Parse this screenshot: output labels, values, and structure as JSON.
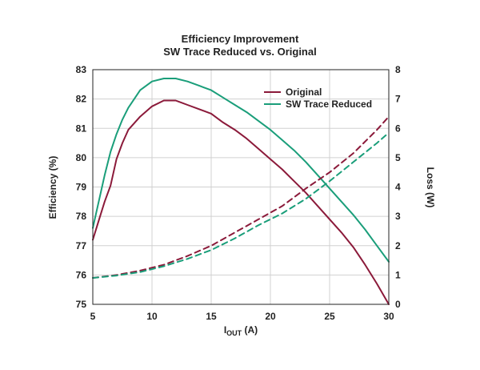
{
  "chart_data": {
    "type": "line",
    "title": "Efficiency Improvement",
    "subtitle": "SW Trace Reduced vs. Original",
    "xlabel_main": "I",
    "xlabel_sub": "OUT",
    "xlabel_unit": " (A)",
    "ylabel_left": "Efficiency (%)",
    "ylabel_right": "Loss (W)",
    "xlim": [
      5,
      30
    ],
    "ylim_left": [
      75,
      83
    ],
    "ylim_right": [
      0,
      8
    ],
    "x_ticks": [
      5,
      10,
      15,
      20,
      25,
      30
    ],
    "y_ticks_left": [
      75,
      76,
      77,
      78,
      79,
      80,
      81,
      82,
      83
    ],
    "y_ticks_right": [
      0,
      1,
      2,
      3,
      4,
      5,
      6,
      7,
      8
    ],
    "grid": true,
    "legend_position": "top-right",
    "colors": {
      "original": "#8b1a3a",
      "sw_trace_reduced": "#1a9e7a"
    },
    "series": [
      {
        "name": "Original",
        "metric": "efficiency",
        "axis": "left",
        "color": "#8b1a3a",
        "style": "solid",
        "x": [
          5,
          5.5,
          6,
          6.5,
          7,
          7.5,
          8,
          9,
          10,
          11,
          12,
          13,
          14,
          15,
          16,
          17,
          18,
          19,
          20,
          21,
          22,
          23,
          24,
          25,
          26,
          27,
          28,
          29,
          30
        ],
        "values": [
          77.2,
          77.85,
          78.5,
          79.05,
          79.95,
          80.5,
          80.95,
          81.4,
          81.75,
          81.95,
          81.95,
          81.8,
          81.65,
          81.5,
          81.2,
          80.95,
          80.65,
          80.3,
          79.95,
          79.6,
          79.2,
          78.8,
          78.35,
          77.9,
          77.45,
          76.95,
          76.35,
          75.7,
          75.0
        ]
      },
      {
        "name": "SW Trace Reduced",
        "metric": "efficiency",
        "axis": "left",
        "color": "#1a9e7a",
        "style": "solid",
        "x": [
          5,
          5.5,
          6,
          6.5,
          7,
          7.5,
          8,
          9,
          10,
          11,
          12,
          13,
          14,
          15,
          16,
          17,
          18,
          19,
          20,
          21,
          22,
          23,
          24,
          25,
          26,
          27,
          28,
          29,
          30
        ],
        "values": [
          77.6,
          78.5,
          79.4,
          80.2,
          80.8,
          81.3,
          81.7,
          82.3,
          82.6,
          82.7,
          82.7,
          82.6,
          82.45,
          82.3,
          82.05,
          81.8,
          81.55,
          81.25,
          80.95,
          80.6,
          80.25,
          79.85,
          79.4,
          78.95,
          78.5,
          78.05,
          77.55,
          77.0,
          76.45
        ]
      },
      {
        "name": "Original",
        "metric": "loss",
        "axis": "right",
        "color": "#8b1a3a",
        "style": "dashed",
        "x": [
          5,
          7,
          9,
          11,
          13,
          15,
          17,
          19,
          21,
          23,
          25,
          27,
          29,
          30
        ],
        "values": [
          0.9,
          1.0,
          1.15,
          1.35,
          1.65,
          2.0,
          2.45,
          2.9,
          3.35,
          3.95,
          4.5,
          5.15,
          5.95,
          6.4
        ]
      },
      {
        "name": "SW Trace Reduced",
        "metric": "loss",
        "axis": "right",
        "color": "#1a9e7a",
        "style": "dashed",
        "x": [
          5,
          7,
          9,
          11,
          13,
          15,
          17,
          19,
          21,
          23,
          25,
          27,
          29,
          30
        ],
        "values": [
          0.9,
          0.98,
          1.1,
          1.3,
          1.55,
          1.85,
          2.25,
          2.7,
          3.1,
          3.6,
          4.2,
          4.85,
          5.5,
          5.85
        ]
      }
    ],
    "legend": [
      {
        "label": "Original",
        "color": "#8b1a3a"
      },
      {
        "label": "SW Trace Reduced",
        "color": "#1a9e7a"
      }
    ]
  }
}
